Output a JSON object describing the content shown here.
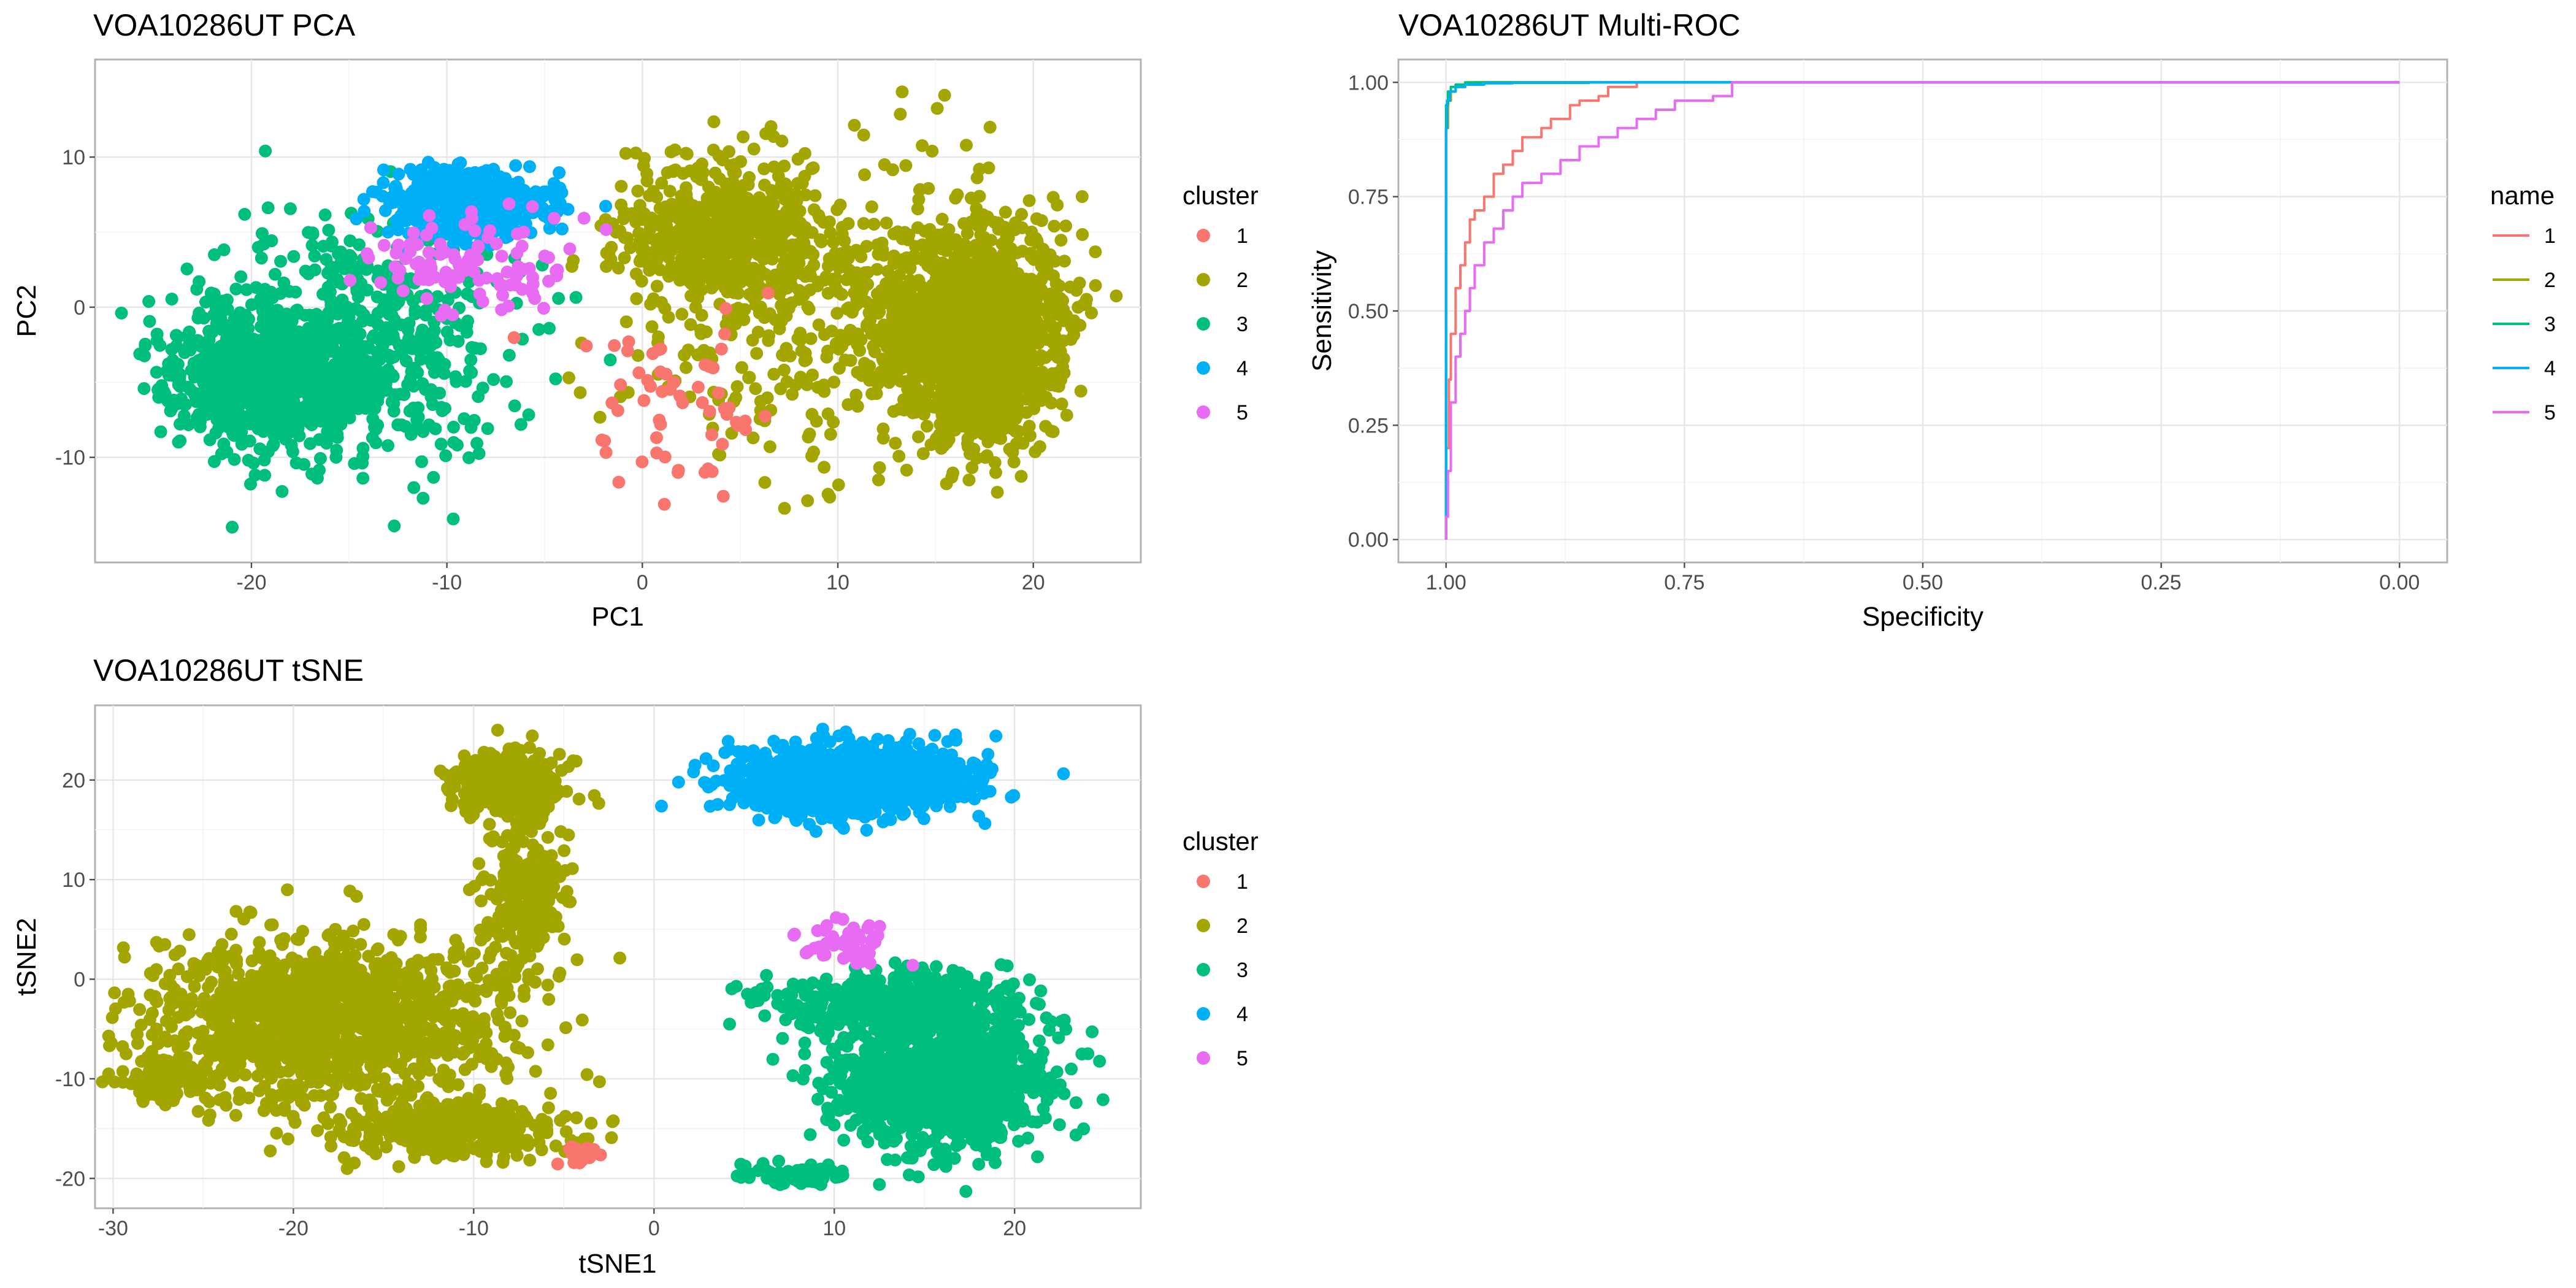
{
  "colors": {
    "1": "#F8766D",
    "2": "#A3A500",
    "3": "#00BF7D",
    "4": "#00B0F6",
    "5": "#E76BF3"
  },
  "chart_data": [
    {
      "id": "pca",
      "type": "scatter",
      "title": "VOA10286UT PCA",
      "xlabel": "PC1",
      "ylabel": "PC2",
      "xlim": [
        -28,
        25.5
      ],
      "ylim": [
        -17,
        16.5
      ],
      "xticks": [
        -20,
        -10,
        0,
        10,
        20
      ],
      "yticks": [
        -10,
        0,
        10
      ],
      "xtick_labels": [
        "-20",
        "-10",
        "0",
        "10",
        "20"
      ],
      "ytick_labels": [
        "-10",
        "0",
        "10"
      ],
      "legend_title": "cluster",
      "legend_labels": [
        "1",
        "2",
        "3",
        "4",
        "5"
      ],
      "grid": true,
      "legend_position": "right",
      "clusters": [
        {
          "name": "1",
          "n": 60,
          "blobs": [
            {
              "cx": 1.5,
              "cy": -7,
              "sx": 3.0,
              "sy": 3.0,
              "w": 1
            }
          ]
        },
        {
          "name": "2",
          "n": 2400,
          "blobs": [
            {
              "cx": 17,
              "cy": -2,
              "sx": 2.2,
              "sy": 3.5,
              "w": 0.6
            },
            {
              "cx": 4,
              "cy": 5,
              "sx": 2.5,
              "sy": 2.5,
              "w": 0.2
            },
            {
              "cx": 9,
              "cy": 1,
              "sx": 5.0,
              "sy": 5.0,
              "w": 0.2
            }
          ]
        },
        {
          "name": "3",
          "n": 1300,
          "blobs": [
            {
              "cx": -19,
              "cy": -4.5,
              "sx": 2.5,
              "sy": 2.3,
              "w": 0.65
            },
            {
              "cx": -14,
              "cy": -2,
              "sx": 4.0,
              "sy": 4.0,
              "w": 0.35
            }
          ]
        },
        {
          "name": "4",
          "n": 700,
          "blobs": [
            {
              "cx": -9,
              "cy": 7,
              "sx": 2.0,
              "sy": 1.0,
              "w": 1
            }
          ]
        },
        {
          "name": "5",
          "n": 110,
          "blobs": [
            {
              "cx": -9,
              "cy": 3,
              "sx": 2.5,
              "sy": 1.8,
              "w": 1
            }
          ]
        }
      ]
    },
    {
      "id": "roc",
      "type": "line",
      "title": "VOA10286UT Multi-ROC",
      "xlabel": "Specificity",
      "ylabel": "Sensitivity",
      "xlim": [
        1.05,
        -0.05
      ],
      "ylim": [
        -0.05,
        1.05
      ],
      "xticks": [
        1.0,
        0.75,
        0.5,
        0.25,
        0.0
      ],
      "yticks": [
        0.0,
        0.25,
        0.5,
        0.75,
        1.0
      ],
      "xtick_labels": [
        "1.00",
        "0.75",
        "0.50",
        "0.25",
        "0.00"
      ],
      "ytick_labels": [
        "0.00",
        "0.25",
        "0.50",
        "0.75",
        "1.00"
      ],
      "legend_title": "name",
      "legend_labels": [
        "1",
        "2",
        "3",
        "4",
        "5"
      ],
      "grid": true,
      "legend_position": "right",
      "series": [
        {
          "name": "1",
          "x": [
            1.0,
            0.997,
            0.995,
            0.99,
            0.985,
            0.98,
            0.975,
            0.97,
            0.96,
            0.95,
            0.94,
            0.93,
            0.92,
            0.9,
            0.89,
            0.87,
            0.86,
            0.84,
            0.83,
            0.82,
            0.8,
            0.8,
            0.0
          ],
          "y": [
            0.0,
            0.2,
            0.35,
            0.45,
            0.55,
            0.6,
            0.65,
            0.7,
            0.72,
            0.75,
            0.8,
            0.82,
            0.85,
            0.88,
            0.9,
            0.92,
            0.95,
            0.96,
            0.97,
            0.99,
            0.99,
            1.0,
            1.0
          ]
        },
        {
          "name": "2",
          "x": [
            1.0,
            1.0,
            0.998,
            0.995,
            0.99,
            0.98,
            0.97,
            0.95,
            0.0
          ],
          "y": [
            0.0,
            0.6,
            0.9,
            0.96,
            0.98,
            0.99,
            0.995,
            1.0,
            1.0
          ]
        },
        {
          "name": "3",
          "x": [
            1.0,
            1.0,
            0.998,
            0.995,
            0.99,
            0.98,
            0.96,
            0.9,
            0.0
          ],
          "y": [
            0.0,
            0.7,
            0.95,
            0.98,
            0.99,
            0.995,
            1.0,
            1.0,
            1.0
          ]
        },
        {
          "name": "4",
          "x": [
            1.0,
            1.0,
            0.999,
            0.996,
            0.99,
            0.98,
            0.96,
            0.93,
            0.85,
            0.8,
            0.0
          ],
          "y": [
            0.0,
            0.5,
            0.9,
            0.96,
            0.98,
            0.99,
            0.995,
            0.998,
            0.999,
            1.0,
            1.0
          ]
        },
        {
          "name": "5",
          "x": [
            1.0,
            0.998,
            0.995,
            0.99,
            0.985,
            0.98,
            0.975,
            0.97,
            0.96,
            0.95,
            0.94,
            0.93,
            0.92,
            0.9,
            0.88,
            0.86,
            0.84,
            0.82,
            0.8,
            0.78,
            0.76,
            0.74,
            0.72,
            0.7,
            0.7,
            0.0
          ],
          "y": [
            0.0,
            0.05,
            0.15,
            0.3,
            0.4,
            0.45,
            0.5,
            0.55,
            0.6,
            0.65,
            0.68,
            0.72,
            0.75,
            0.78,
            0.8,
            0.83,
            0.86,
            0.88,
            0.9,
            0.92,
            0.94,
            0.96,
            0.96,
            0.97,
            1.0,
            1.0
          ]
        }
      ]
    },
    {
      "id": "tsne",
      "type": "scatter",
      "title": "VOA10286UT tSNE",
      "xlabel": "tSNE1",
      "ylabel": "tSNE2",
      "xlim": [
        -31,
        27
      ],
      "ylim": [
        -23,
        27.5
      ],
      "xticks": [
        -30,
        -20,
        -10,
        0,
        10,
        20
      ],
      "yticks": [
        -20,
        -10,
        0,
        10,
        20
      ],
      "xtick_labels": [
        "-30",
        "-20",
        "-10",
        "0",
        "10",
        "20"
      ],
      "ytick_labels": [
        "-20",
        "-10",
        "0",
        "10",
        "20"
      ],
      "legend_title": "cluster",
      "legend_labels": [
        "1",
        "2",
        "3",
        "4",
        "5"
      ],
      "grid": true,
      "legend_position": "right",
      "clusters": [
        {
          "name": "1",
          "n": 30,
          "blobs": [
            {
              "cx": -4,
              "cy": -17.5,
              "sx": 0.6,
              "sy": 0.5,
              "w": 1
            }
          ]
        },
        {
          "name": "2",
          "n": 2400,
          "blobs": [
            {
              "cx": -18,
              "cy": -4,
              "sx": 5.0,
              "sy": 4.0,
              "w": 0.55
            },
            {
              "cx": -11,
              "cy": -15,
              "sx": 3.0,
              "sy": 1.5,
              "w": 0.15
            },
            {
              "cx": -8,
              "cy": 19.5,
              "sx": 1.5,
              "sy": 1.5,
              "w": 0.15
            },
            {
              "cx": -7,
              "cy": 8,
              "sx": 1.2,
              "sy": 4.0,
              "w": 0.1
            },
            {
              "cx": -27,
              "cy": -10,
              "sx": 1.0,
              "sy": 1.0,
              "w": 0.05
            }
          ]
        },
        {
          "name": "3",
          "n": 1600,
          "blobs": [
            {
              "cx": 16,
              "cy": -10,
              "sx": 3.0,
              "sy": 3.5,
              "w": 0.7
            },
            {
              "cx": 13,
              "cy": -2,
              "sx": 3.5,
              "sy": 1.5,
              "w": 0.25
            },
            {
              "cx": 8,
              "cy": -19.5,
              "sx": 1.5,
              "sy": 0.5,
              "w": 0.05
            }
          ]
        },
        {
          "name": "4",
          "n": 1200,
          "blobs": [
            {
              "cx": 11,
              "cy": 20,
              "sx": 3.2,
              "sy": 1.7,
              "w": 1
            }
          ]
        },
        {
          "name": "5",
          "n": 50,
          "blobs": [
            {
              "cx": 10.5,
              "cy": 3.5,
              "sx": 1.2,
              "sy": 1.2,
              "w": 1
            }
          ]
        }
      ]
    }
  ]
}
